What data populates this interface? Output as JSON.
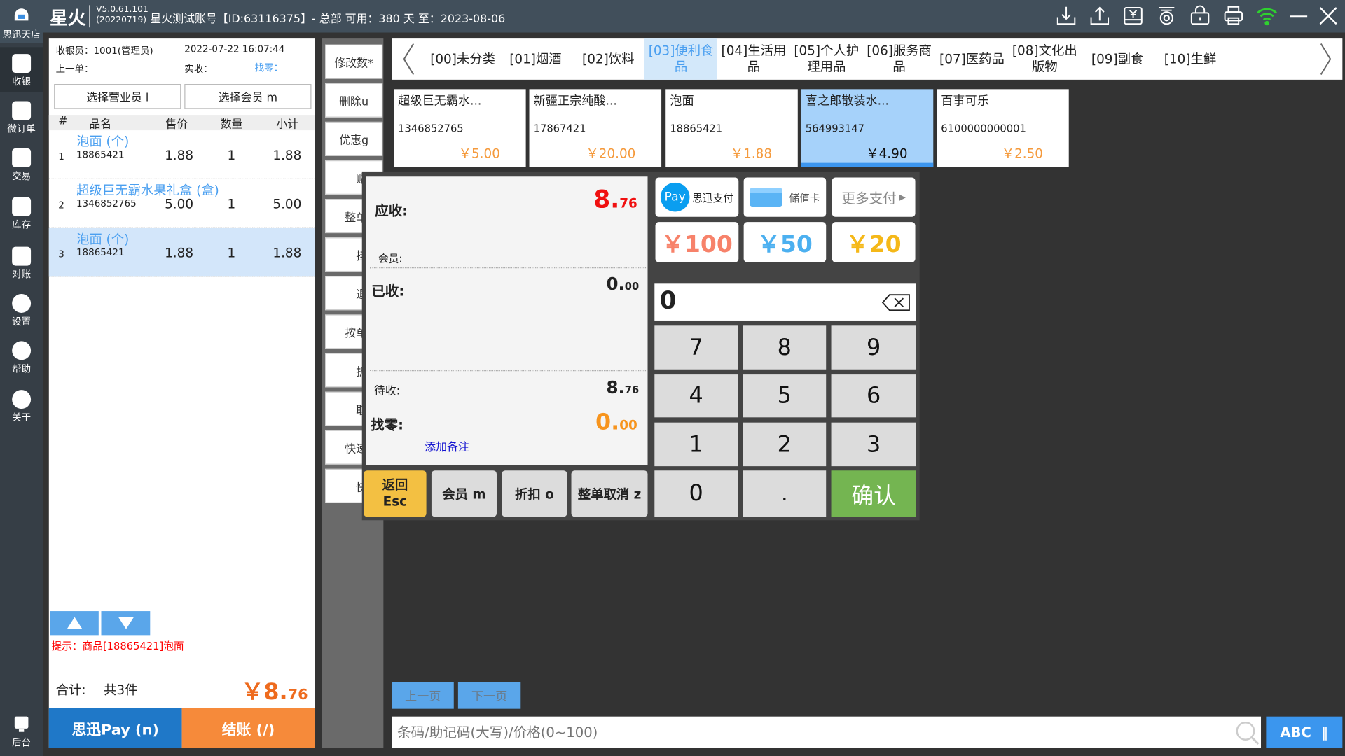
{
  "header": {
    "logo": "星火",
    "version": "V5.0.61.101",
    "build": "(20220719)",
    "account": "星火测试账号【ID:63116375】- 总部 可用：380 天 至：2023-08-06",
    "icons": [
      "download-icon",
      "upload-icon",
      "cash-drawer-icon",
      "scale-icon",
      "lock-icon",
      "printer-icon",
      "wifi-icon",
      "minimize-icon",
      "close-icon"
    ],
    "wifi_color": "#2fd12f"
  },
  "sidebar": {
    "brand": "思迅天店",
    "items": [
      {
        "label": "收银",
        "icon": "cashier-icon",
        "active": true
      },
      {
        "label": "微订单",
        "icon": "order-icon"
      },
      {
        "label": "交易",
        "icon": "transaction-icon"
      },
      {
        "label": "库存",
        "icon": "inventory-icon"
      },
      {
        "label": "对账",
        "icon": "reconcile-icon"
      },
      {
        "label": "设置",
        "icon": "gear-icon"
      },
      {
        "label": "帮助",
        "icon": "help-icon"
      },
      {
        "label": "关于",
        "icon": "info-icon"
      }
    ],
    "bottom": "后台"
  },
  "order": {
    "cashier": "收银员：1001(管理员)",
    "datetime": "2022-07-22 16:07:44",
    "last": "上一单：",
    "received": "实收：",
    "change": "找零：",
    "select_staff": "选择营业员 l",
    "select_member": "选择会员 m",
    "columns": [
      "#",
      "品名",
      "售价",
      "数量",
      "小计"
    ],
    "rows": [
      {
        "idx": "1",
        "name": "泡面 (个)",
        "code": "18865421",
        "price": "1.88",
        "qty": "1",
        "subtotal": "1.88"
      },
      {
        "idx": "2",
        "name": "超级巨无霸水果礼盒 (盒)",
        "code": "1346852765",
        "price": "5.00",
        "qty": "1",
        "subtotal": "5.00"
      },
      {
        "idx": "3",
        "name": "泡面 (个)",
        "code": "18865421",
        "price": "1.88",
        "qty": "1",
        "subtotal": "1.88",
        "selected": true
      }
    ],
    "hint": "提示：商品[18865421]泡面",
    "total_label": "合计:",
    "total_count": "共3件",
    "total_int": "￥8.",
    "total_dec": "76",
    "pay_button": "思迅Pay (n)",
    "checkout_button": "结账 (/)"
  },
  "functions": [
    "修改数*",
    "删除u",
    "优惠g",
    "赠送",
    "整单取",
    "挂单",
    "退货",
    "按单退",
    "折扣",
    "取重",
    "快速调",
    "快捷"
  ],
  "categories": [
    {
      "label": "[00]未分类"
    },
    {
      "label": "[01]烟酒"
    },
    {
      "label": "[02]饮料"
    },
    {
      "label": "[03]便利食品",
      "active": true
    },
    {
      "label": "[04]生活用品"
    },
    {
      "label": "[05]个人护理用品"
    },
    {
      "label": "[06]服务商品"
    },
    {
      "label": "[07]医药品"
    },
    {
      "label": "[08]文化出版物"
    },
    {
      "label": "[09]副食"
    },
    {
      "label": "[10]生鲜"
    }
  ],
  "products": [
    {
      "name": "超级巨无霸水...",
      "code": "1346852765",
      "price": "￥5.00"
    },
    {
      "name": "新疆正宗纯酸...",
      "code": "17867421",
      "price": "￥20.00"
    },
    {
      "name": "泡面",
      "code": "18865421",
      "price": "￥1.88"
    },
    {
      "name": "喜之郎散装水...",
      "code": "564993147",
      "price": "￥4.90",
      "selected": true
    },
    {
      "name": "百事可乐",
      "code": "6100000000001",
      "price": "￥2.50"
    }
  ],
  "payment": {
    "due_label": "应收:",
    "due_int": "8.",
    "due_dec": "76",
    "member_label": "会员:",
    "paid_label": "已收:",
    "paid_int": "0.",
    "paid_dec": "00",
    "pending_label": "待收:",
    "pending_int": "8.",
    "pending_dec": "76",
    "change_label": "找零:",
    "change_int": "0.",
    "change_dec": "00",
    "add_note": "添加备注",
    "methods": {
      "pay_badge": "Pay",
      "sixun": "思迅支付",
      "card": "储值卡",
      "more": "更多支付"
    },
    "cash": [
      "￥100",
      "￥50",
      "￥20"
    ],
    "input_value": "0",
    "keys": [
      "7",
      "8",
      "9",
      "4",
      "5",
      "6",
      "1",
      "2",
      "3",
      "0",
      "."
    ],
    "confirm": "确认",
    "actions": {
      "back": "返回",
      "back_key": "Esc",
      "member": "会员 m",
      "discount": "折扣 o",
      "cancel_all": "整单取消 z"
    }
  },
  "pager": {
    "prev": "上一页",
    "next": "下一页"
  },
  "search": {
    "placeholder": "条码/助记码(大写)/价格(0~100)",
    "ime": "ABC"
  },
  "colors": {
    "accent_blue": "#4a9ff0",
    "orange": "#f68a3a",
    "pay_blue": "#1f78c8",
    "confirm_green": "#74b551",
    "esc_yellow": "#f3c042"
  }
}
